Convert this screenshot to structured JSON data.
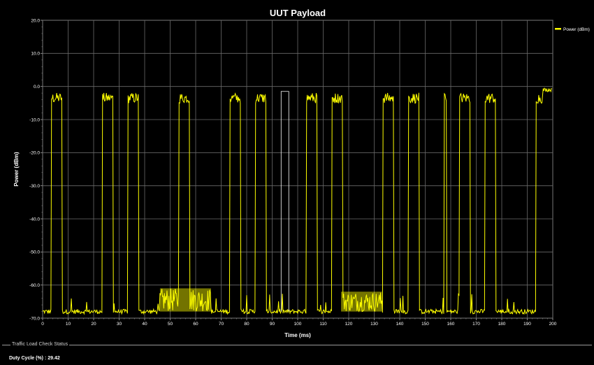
{
  "chart_data": {
    "type": "line",
    "title": "UUT Payload",
    "xlabel": "Time (ms)",
    "ylabel": "Power (dBm)",
    "xlim": [
      0,
      200
    ],
    "ylim": [
      -70,
      20
    ],
    "x_ticks": [
      0,
      10,
      20,
      30,
      40,
      50,
      60,
      70,
      80,
      90,
      100,
      110,
      120,
      130,
      140,
      150,
      160,
      170,
      180,
      190,
      200
    ],
    "x_tick_labels": [
      "0",
      "10",
      "20",
      "30",
      "40",
      "50",
      "60",
      "70",
      "80",
      "90",
      "100",
      "110",
      "120",
      "130",
      "140",
      "150",
      "160",
      "170",
      "180",
      "190",
      "200"
    ],
    "y_ticks": [
      -70,
      -60,
      -50,
      -40,
      -30,
      -20,
      -10,
      0,
      10,
      20
    ],
    "y_tick_labels": [
      "-70.0",
      "-60.0",
      "-50.0",
      "-40.0",
      "-30.0",
      "-20.0",
      "-10.0",
      "0.0",
      "10.0",
      "20.0"
    ],
    "grid": true,
    "legend_position": "top-right",
    "series": [
      {
        "name": "Power (dBm)",
        "color": "#ffff00",
        "baseline_dBm": -68,
        "pulse_level_dBm": -3.5,
        "bursts_ms": [
          [
            3.5,
            7.5
          ],
          [
            23.5,
            27.5
          ],
          [
            33.5,
            37.5
          ],
          [
            53.5,
            57.5
          ],
          [
            73.5,
            77.5
          ],
          [
            83.5,
            87.5
          ],
          [
            103.5,
            107.5
          ],
          [
            113.5,
            117.5
          ],
          [
            133.5,
            137.5
          ],
          [
            143.5,
            147.5
          ],
          [
            157.5,
            158.3
          ],
          [
            163.5,
            167.5
          ],
          [
            173.5,
            177.5
          ],
          [
            193.5,
            196
          ]
        ],
        "markers": [
          {
            "x": [
              93.5,
              96.5
            ],
            "y": -1.5
          }
        ],
        "noise_regions_ms": [
          {
            "x": [
              46,
              66
            ],
            "low": -68,
            "high": -61
          },
          {
            "x": [
              117,
              133
            ],
            "low": -68,
            "high": -62
          }
        ],
        "tail_segment": {
          "x": [
            196,
            199.5
          ],
          "y": -1
        }
      }
    ]
  },
  "status_panel": {
    "title": "Traffic Load Check Status",
    "duty_cycle_label": "Duty Cycle (%) :",
    "duty_cycle_value": "29.42"
  }
}
